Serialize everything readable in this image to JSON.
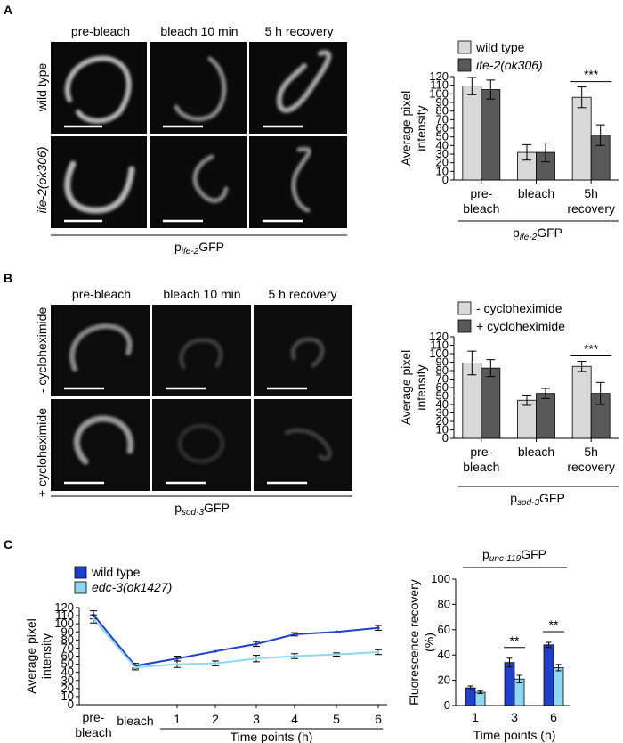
{
  "panel_a": {
    "letter": "A",
    "columns": [
      "pre-bleach",
      "bleach 10 min",
      "5 h recovery"
    ],
    "rows": [
      "wild type",
      "ife-2(ok306)"
    ],
    "promoter_main": "p",
    "promoter_sub": "ife-2",
    "promoter_suffix": "GFP"
  },
  "panel_b": {
    "letter": "B",
    "columns": [
      "pre-bleach",
      "bleach 10 min",
      "5 h recovery"
    ],
    "rows": [
      "- cycloheximide",
      "+ cycloheximide"
    ],
    "promoter_main": "p",
    "promoter_sub": "sod-3",
    "promoter_suffix": "GFP"
  },
  "panel_c": {
    "letter": "C",
    "bar_promoter_main": "p",
    "bar_promoter_sub": "unc-119",
    "bar_promoter_suffix": "GFP"
  },
  "colors": {
    "light_gray": "#d9d9d9",
    "dark_gray": "#595959",
    "dark_blue": "#1f3fcc",
    "light_blue": "#8fd8f2"
  },
  "chart_data": [
    {
      "id": "chart-a",
      "type": "bar",
      "categories": [
        [
          "pre-",
          "bleach"
        ],
        [
          "bleach"
        ],
        [
          "5h",
          "recovery"
        ]
      ],
      "series": [
        {
          "name": "wild type",
          "values": [
            109,
            32,
            96
          ],
          "errors": [
            10,
            9,
            12
          ]
        },
        {
          "name": "ife-2(ok306)",
          "values": [
            105,
            32,
            52
          ],
          "errors": [
            11,
            11,
            12
          ]
        }
      ],
      "ylabel": [
        "Average pixel",
        "intensity"
      ],
      "ylim": [
        0,
        120
      ],
      "yticks": [
        0,
        10,
        20,
        30,
        40,
        50,
        60,
        70,
        80,
        90,
        100,
        110,
        120
      ],
      "legend": "top",
      "significance": [
        {
          "category": 2,
          "label": "***"
        }
      ]
    },
    {
      "id": "chart-b",
      "type": "bar",
      "categories": [
        [
          "pre-",
          "bleach"
        ],
        [
          "bleach"
        ],
        [
          "5h",
          "recovery"
        ]
      ],
      "series": [
        {
          "name": "- cycloheximide",
          "values": [
            89,
            45,
            85
          ],
          "errors": [
            14,
            6,
            6
          ]
        },
        {
          "name": "+ cycloheximide",
          "values": [
            83,
            53,
            53
          ],
          "errors": [
            10,
            6,
            13
          ]
        }
      ],
      "ylabel": [
        "Average pixel",
        "intensity"
      ],
      "ylim": [
        0,
        120
      ],
      "yticks": [
        0,
        10,
        20,
        30,
        40,
        50,
        60,
        70,
        80,
        90,
        100,
        110,
        120
      ],
      "legend": "top",
      "significance": [
        {
          "category": 2,
          "label": "***"
        }
      ]
    },
    {
      "id": "chart-c-line",
      "type": "line",
      "x": [
        "pre-bleach",
        "bleach",
        "1",
        "2",
        "3",
        "4",
        "5",
        "6"
      ],
      "series": [
        {
          "name": "wild type",
          "values": [
            111,
            48,
            57,
            66,
            75,
            87,
            90,
            95
          ],
          "errors": [
            5,
            3,
            3,
            0,
            3,
            2,
            0,
            3
          ]
        },
        {
          "name": "edc-3(ok1427)",
          "values": [
            106,
            46,
            50,
            51,
            57,
            60,
            62,
            65
          ],
          "errors": [
            5,
            3,
            4,
            3,
            4,
            3,
            2,
            3
          ]
        }
      ],
      "xlabel": "Time points (h)",
      "ylabel": [
        "Average pixel",
        "intensity"
      ],
      "ylim": [
        0,
        120
      ],
      "yticks": [
        0,
        10,
        20,
        30,
        40,
        50,
        60,
        70,
        80,
        90,
        100,
        110,
        120
      ],
      "legend": "top-left"
    },
    {
      "id": "chart-c-bar",
      "type": "bar",
      "categories": [
        "1",
        "3",
        "6"
      ],
      "series": [
        {
          "name": "wild type",
          "values": [
            14,
            34,
            48
          ],
          "errors": [
            1.5,
            3.5,
            2
          ]
        },
        {
          "name": "edc-3(ok1427)",
          "values": [
            10.5,
            21,
            30
          ],
          "errors": [
            1,
            3,
            2.5
          ]
        }
      ],
      "xlabel": "Time points (h)",
      "ylabel": [
        "Fluorescence recovery",
        "(%)"
      ],
      "ylim": [
        0,
        100
      ],
      "yticks": [
        0,
        20,
        40,
        60,
        80,
        100
      ],
      "significance": [
        {
          "category": 1,
          "label": "**"
        },
        {
          "category": 2,
          "label": "**"
        }
      ]
    }
  ]
}
